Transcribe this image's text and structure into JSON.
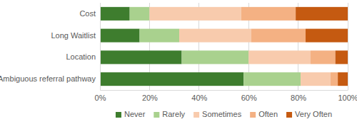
{
  "chart_data": {
    "type": "bar",
    "orientation": "horizontal",
    "stacked": true,
    "grid": true,
    "legend": "bottom",
    "categories": [
      "Cost",
      "Long Waitlist",
      "Location",
      "Ambiguous referral pathway"
    ],
    "series": [
      {
        "name": "Never",
        "color": "#3e7d2e",
        "values": [
          12,
          16,
          33,
          58
        ]
      },
      {
        "name": "Rarely",
        "color": "#a9d18e",
        "values": [
          8,
          16,
          27,
          23
        ]
      },
      {
        "name": "Sometimes",
        "color": "#f8cbad",
        "values": [
          37,
          29,
          25,
          12
        ]
      },
      {
        "name": "Often",
        "color": "#f4b183",
        "values": [
          22,
          22,
          10,
          3
        ]
      },
      {
        "name": "Very Often",
        "color": "#c55a11",
        "values": [
          21,
          17,
          5,
          4
        ]
      }
    ],
    "xlim": [
      0,
      100
    ],
    "xticks": [
      {
        "value": 0,
        "label": "0%"
      },
      {
        "value": 20,
        "label": "20%"
      },
      {
        "value": 40,
        "label": "40%"
      },
      {
        "value": 60,
        "label": "60%"
      },
      {
        "value": 80,
        "label": "80%"
      },
      {
        "value": 100,
        "label": "100%"
      }
    ]
  }
}
